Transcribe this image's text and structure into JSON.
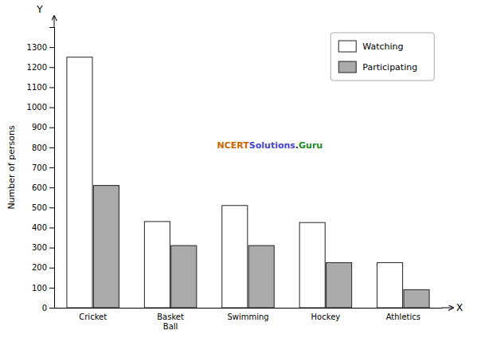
{
  "chart_data": {
    "type": "bar",
    "categories": [
      "Cricket",
      "Basket\nBall",
      "Swimming",
      "Hockey",
      "Athletics"
    ],
    "series": [
      {
        "name": "Watching",
        "color": "#ffffff",
        "values": [
          1250,
          430,
          510,
          425,
          225
        ]
      },
      {
        "name": "Participating",
        "color": "#aaaaaa",
        "values": [
          610,
          310,
          310,
          225,
          90
        ]
      }
    ],
    "ylabel": "Number of persons",
    "xlabel": "X",
    "ylim": [
      0,
      1400
    ],
    "yticks": [
      0,
      100,
      200,
      300,
      400,
      500,
      600,
      700,
      800,
      900,
      1000,
      1100,
      1200,
      1300
    ],
    "annotations": [
      {
        "text": "Y"
      },
      {
        "text": "NCERT",
        "color": "#cc6600"
      },
      {
        "text": "Solutions",
        "color": "#4444cc"
      },
      {
        "text": ".",
        "color": "#222222"
      },
      {
        "text": "Guru",
        "color": "#228822"
      }
    ],
    "legend": "upper right",
    "grid": false
  }
}
